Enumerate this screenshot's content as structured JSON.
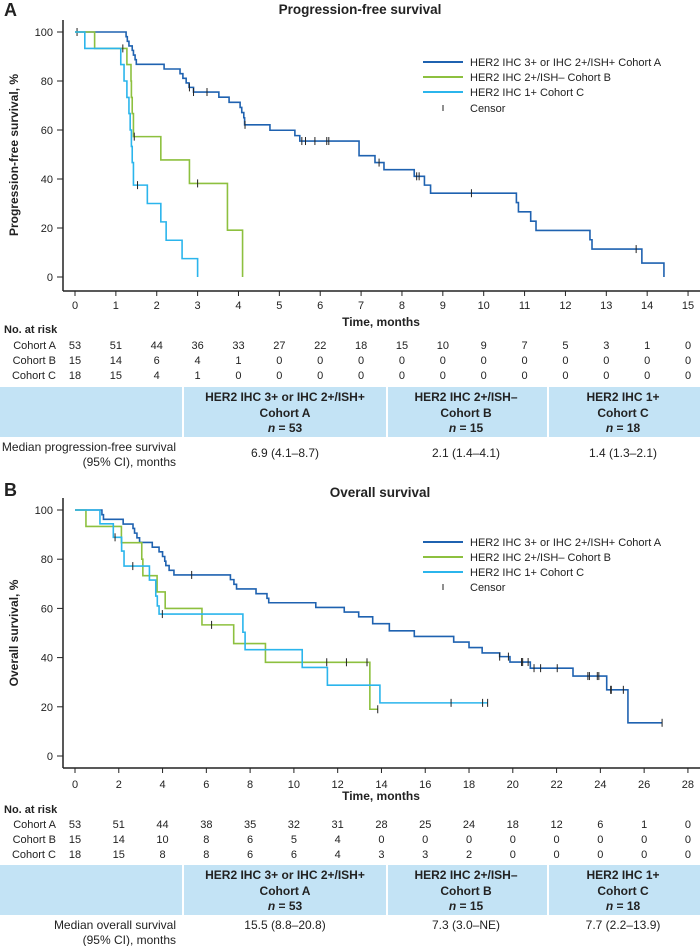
{
  "chart_data": [
    {
      "type": "line",
      "panel": "A",
      "title": "Progression-free survival",
      "xlabel": "Time, months",
      "ylabel": "Progression-free survival, %",
      "xlim": [
        0,
        15
      ],
      "ylim": [
        0,
        100
      ],
      "xticks": [
        0,
        1,
        2,
        3,
        4,
        5,
        6,
        7,
        8,
        9,
        10,
        11,
        12,
        13,
        14,
        15
      ],
      "yticks": [
        0,
        20,
        40,
        60,
        80,
        100
      ],
      "grid": false,
      "legend_position": "top-right",
      "censor_label": "Censor",
      "series": [
        {
          "name": "HER2 IHC 3+ or IHC 2+/ISH+ Cohort A",
          "color": "#1f62b0",
          "steps": [
            [
              0,
              100
            ],
            [
              1.25,
              98.1
            ],
            [
              1.28,
              96.2
            ],
            [
              1.32,
              94.3
            ],
            [
              1.4,
              92.5
            ],
            [
              1.43,
              90.6
            ],
            [
              1.47,
              88.7
            ],
            [
              1.5,
              86.8
            ],
            [
              2.18,
              84.9
            ],
            [
              2.57,
              83.0
            ],
            [
              2.64,
              81.1
            ],
            [
              2.72,
              79.2
            ],
            [
              2.79,
              77.4
            ],
            [
              2.9,
              75.5
            ],
            [
              3.52,
              73.4
            ],
            [
              3.77,
              71.3
            ],
            [
              4.04,
              69.2
            ],
            [
              4.08,
              67.1
            ],
            [
              4.13,
              65.0
            ],
            [
              4.15,
              62.1
            ],
            [
              4.77,
              59.9
            ],
            [
              5.38,
              57.7
            ],
            [
              5.5,
              55.5
            ],
            [
              6.95,
              49.5
            ],
            [
              7.34,
              46.7
            ],
            [
              7.56,
              43.8
            ],
            [
              8.3,
              41.1
            ],
            [
              8.55,
              37.5
            ],
            [
              8.7,
              34.2
            ],
            [
              10.8,
              30.4
            ],
            [
              10.85,
              26.6
            ],
            [
              11.15,
              22.8
            ],
            [
              11.28,
              19.0
            ],
            [
              12.6,
              15.2
            ],
            [
              12.65,
              11.4
            ],
            [
              13.87,
              5.7
            ],
            [
              14.41,
              0
            ]
          ],
          "censors": [
            0.05,
            2.8,
            2.9,
            3.23,
            4.16,
            5.55,
            5.64,
            5.87,
            6.16,
            6.21,
            7.44,
            8.36,
            8.42,
            9.7,
            13.73
          ],
          "end": 14.41
        },
        {
          "name": "HER2 IHC 2+/ISH– Cohort B",
          "color": "#8dc03f",
          "steps": [
            [
              0,
              100
            ],
            [
              0.48,
              93.3
            ],
            [
              1.27,
              86.7
            ],
            [
              1.37,
              80.0
            ],
            [
              1.38,
              73.3
            ],
            [
              1.4,
              66.7
            ],
            [
              1.43,
              57.3
            ],
            [
              2.1,
              47.8
            ],
            [
              2.8,
              38.2
            ],
            [
              3.73,
              19.1
            ],
            [
              4.1,
              0
            ]
          ],
          "censors": [
            1.17,
            1.45,
            3.0
          ],
          "end": 4.1
        },
        {
          "name": "HER2 IHC 1+ Cohort C",
          "color": "#2bb5ec",
          "steps": [
            [
              0,
              100
            ],
            [
              0.24,
              93.3
            ],
            [
              1.12,
              86.7
            ],
            [
              1.2,
              80.0
            ],
            [
              1.27,
              73.3
            ],
            [
              1.32,
              66.7
            ],
            [
              1.35,
              60.0
            ],
            [
              1.38,
              53.3
            ],
            [
              1.4,
              46.7
            ],
            [
              1.43,
              37.5
            ],
            [
              1.77,
              30.0
            ],
            [
              2.1,
              22.5
            ],
            [
              2.23,
              15.0
            ],
            [
              2.62,
              7.5
            ],
            [
              3.0,
              0
            ]
          ],
          "censors": [
            1.53
          ],
          "end": 3.0
        }
      ],
      "at_risk": {
        "label": "No. at risk",
        "times": [
          0,
          1,
          2,
          3,
          4,
          5,
          6,
          7,
          8,
          9,
          10,
          11,
          12,
          13,
          14,
          15
        ],
        "rows": [
          {
            "name": "Cohort A",
            "values": [
              53,
              51,
              44,
              36,
              33,
              27,
              22,
              18,
              15,
              10,
              9,
              7,
              5,
              3,
              1,
              0
            ]
          },
          {
            "name": "Cohort B",
            "values": [
              15,
              14,
              6,
              4,
              1,
              0,
              0,
              0,
              0,
              0,
              0,
              0,
              0,
              0,
              0,
              0
            ]
          },
          {
            "name": "Cohort C",
            "values": [
              18,
              15,
              4,
              1,
              0,
              0,
              0,
              0,
              0,
              0,
              0,
              0,
              0,
              0,
              0,
              0
            ]
          }
        ]
      }
    },
    {
      "type": "line",
      "panel": "B",
      "title": "Overall survival",
      "xlabel": "Time, months",
      "ylabel": "Overall survival, %",
      "xlim": [
        0,
        28
      ],
      "ylim": [
        0,
        100
      ],
      "xticks": [
        0,
        2,
        4,
        6,
        8,
        10,
        12,
        14,
        16,
        18,
        20,
        22,
        24,
        26,
        28
      ],
      "yticks": [
        0,
        20,
        40,
        60,
        80,
        100
      ],
      "grid": false,
      "legend_position": "top-right",
      "censor_label": "Censor",
      "series": [
        {
          "name": "HER2 IHC 3+ or IHC 2+/ISH+ Cohort A",
          "color": "#1f62b0",
          "steps": [
            [
              0,
              100
            ],
            [
              1.23,
              98.1
            ],
            [
              1.3,
              96.2
            ],
            [
              2.2,
              94.3
            ],
            [
              2.65,
              92.5
            ],
            [
              2.72,
              90.6
            ],
            [
              2.83,
              88.7
            ],
            [
              2.95,
              86.8
            ],
            [
              3.53,
              84.9
            ],
            [
              3.84,
              83.0
            ],
            [
              4.0,
              81.1
            ],
            [
              4.1,
              79.2
            ],
            [
              4.15,
              77.4
            ],
            [
              4.3,
              75.5
            ],
            [
              4.52,
              73.6
            ],
            [
              7.1,
              71.7
            ],
            [
              7.26,
              69.8
            ],
            [
              7.38,
              67.9
            ],
            [
              8.27,
              66.0
            ],
            [
              8.77,
              64.1
            ],
            [
              8.85,
              62.3
            ],
            [
              11.0,
              60.4
            ],
            [
              12.3,
              58.5
            ],
            [
              12.96,
              56.6
            ],
            [
              13.6,
              53.8
            ],
            [
              14.36,
              50.9
            ],
            [
              15.5,
              48.6
            ],
            [
              17.3,
              46.3
            ],
            [
              18.0,
              44.1
            ],
            [
              18.6,
              41.9
            ],
            [
              19.4,
              40.4
            ],
            [
              19.87,
              38.2
            ],
            [
              20.8,
              35.7
            ],
            [
              22.75,
              32.5
            ],
            [
              24.29,
              26.9
            ],
            [
              25.26,
              13.5
            ]
          ],
          "censors": [
            5.33,
            19.4,
            19.8,
            20.4,
            20.45,
            20.7,
            20.97,
            21.27,
            22.03,
            23.43,
            23.5,
            23.86,
            23.93,
            24.47,
            24.5,
            25.05,
            26.82
          ],
          "end": 26.82
        },
        {
          "name": "HER2 IHC 2+/ISH– Cohort B",
          "color": "#8dc03f",
          "steps": [
            [
              0,
              100
            ],
            [
              0.5,
              93.3
            ],
            [
              2.12,
              86.7
            ],
            [
              3.05,
              80.0
            ],
            [
              3.1,
              73.3
            ],
            [
              3.75,
              66.7
            ],
            [
              4.12,
              60.0
            ],
            [
              5.8,
              53.3
            ],
            [
              7.25,
              45.7
            ],
            [
              8.7,
              38.1
            ],
            [
              13.47,
              19.0
            ]
          ],
          "censors": [
            6.24,
            11.5,
            12.4,
            13.34,
            13.83
          ],
          "end": 13.83
        },
        {
          "name": "HER2 IHC 1+ Cohort C",
          "color": "#2bb5ec",
          "steps": [
            [
              0,
              100
            ],
            [
              1.14,
              94.4
            ],
            [
              1.75,
              88.9
            ],
            [
              2.13,
              83.3
            ],
            [
              2.24,
              77.2
            ],
            [
              3.4,
              71.5
            ],
            [
              3.69,
              65.0
            ],
            [
              3.76,
              61.0
            ],
            [
              3.84,
              57.7
            ],
            [
              7.67,
              50.3
            ],
            [
              7.77,
              43.2
            ],
            [
              10.38,
              36.0
            ],
            [
              11.53,
              28.8
            ],
            [
              13.93,
              21.6
            ]
          ],
          "censors": [
            1.83,
            2.64,
            3.99,
            17.18,
            18.62,
            18.85
          ],
          "end": 18.85
        }
      ],
      "at_risk": {
        "label": "No. at risk",
        "times": [
          0,
          2,
          4,
          6,
          8,
          10,
          12,
          14,
          16,
          18,
          20,
          22,
          24,
          26,
          28
        ],
        "rows": [
          {
            "name": "Cohort A",
            "values": [
              53,
              51,
              44,
              38,
              35,
              32,
              31,
              28,
              25,
              24,
              18,
              12,
              6,
              1,
              0
            ]
          },
          {
            "name": "Cohort B",
            "values": [
              15,
              14,
              10,
              8,
              6,
              5,
              4,
              0,
              0,
              0,
              0,
              0,
              0,
              0,
              0
            ]
          },
          {
            "name": "Cohort C",
            "values": [
              18,
              15,
              8,
              8,
              6,
              6,
              4,
              3,
              3,
              2,
              0,
              0,
              0,
              0,
              0
            ]
          }
        ]
      }
    }
  ],
  "tables": [
    {
      "band_color": "#c3e3f5",
      "headers": [
        {
          "line1": "HER2 IHC 3+ or IHC 2+/ISH+",
          "line2": "Cohort A",
          "n_symbol": "n",
          "n_text": " = 53"
        },
        {
          "line1": "HER2 IHC 2+/ISH–",
          "line2": "Cohort B",
          "n_symbol": "n",
          "n_text": " = 15"
        },
        {
          "line1": "HER2 IHC 1+",
          "line2": "Cohort C",
          "n_symbol": "n",
          "n_text": " = 18"
        }
      ],
      "row_label_line1": "Median progression-free survival",
      "row_label_line2": "(95% CI), months",
      "values": [
        "6.9 (4.1–8.7)",
        "2.1 (1.4–4.1)",
        "1.4 (1.3–2.1)"
      ]
    },
    {
      "band_color": "#c3e3f5",
      "headers": [
        {
          "line1": "HER2 IHC 3+ or IHC 2+/ISH+",
          "line2": "Cohort A",
          "n_symbol": "n",
          "n_text": " = 53"
        },
        {
          "line1": "HER2 IHC 2+/ISH–",
          "line2": "Cohort B",
          "n_symbol": "n",
          "n_text": " = 15"
        },
        {
          "line1": "HER2 IHC 1+",
          "line2": "Cohort C",
          "n_symbol": "n",
          "n_text": " = 18"
        }
      ],
      "row_label_line1": "Median overall survival",
      "row_label_line2": "(95% CI), months",
      "values": [
        "15.5 (8.8–20.8)",
        "7.3 (3.0–NE)",
        "7.7 (2.2–13.9)"
      ]
    }
  ]
}
